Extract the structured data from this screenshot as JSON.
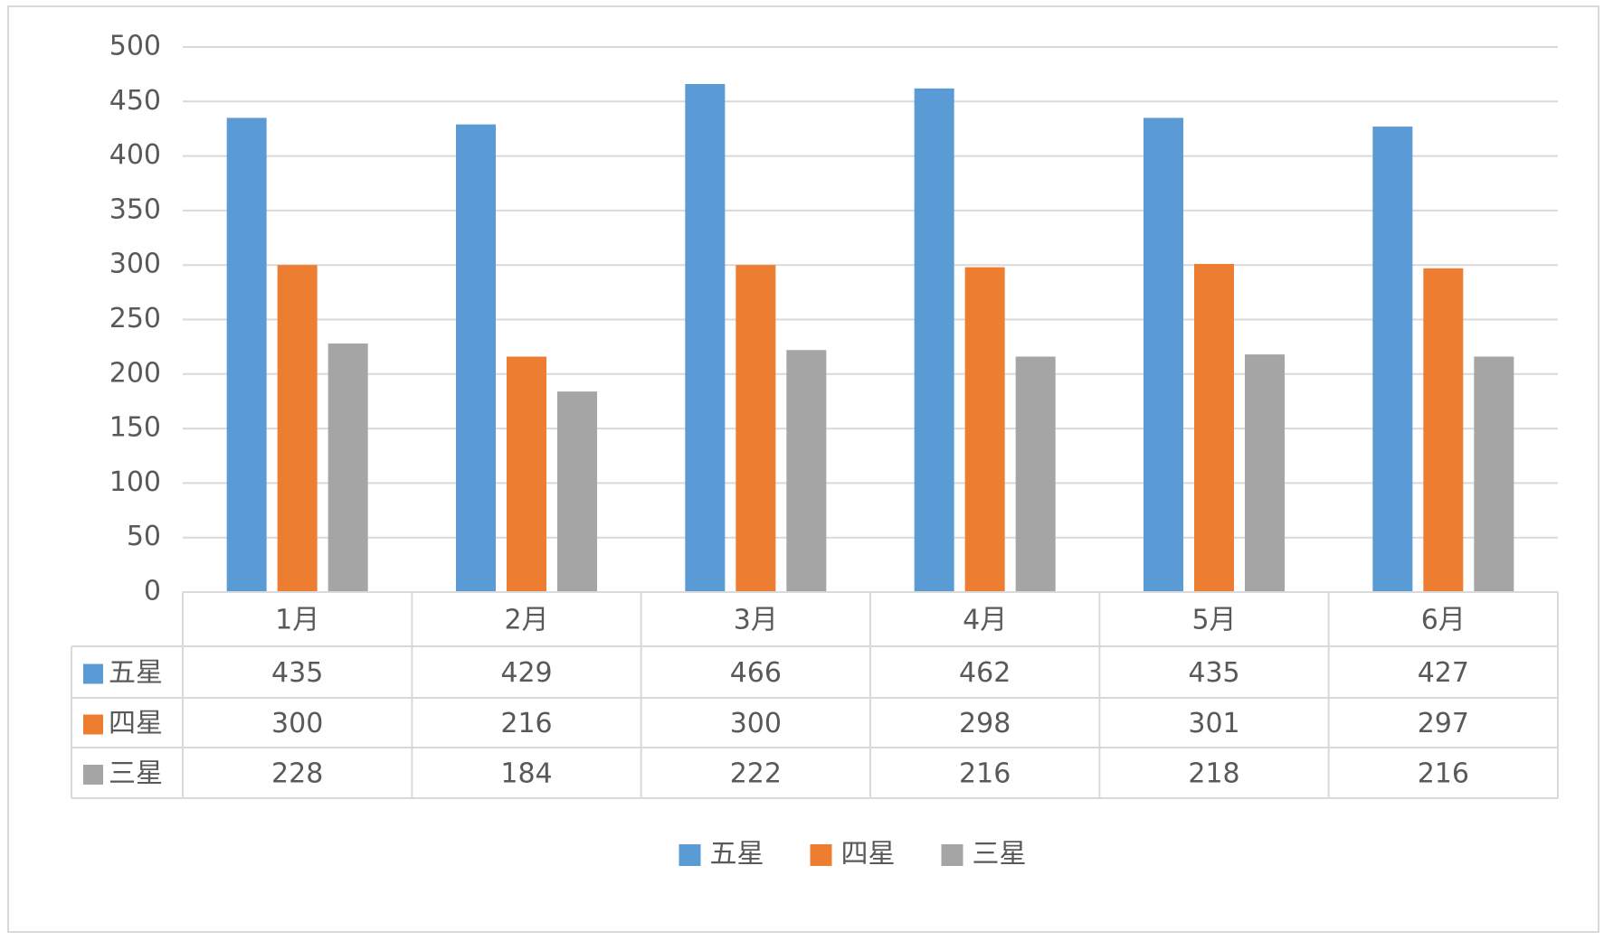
{
  "chart_data": {
    "type": "bar",
    "categories": [
      "1月",
      "2月",
      "3月",
      "4月",
      "5月",
      "6月"
    ],
    "series": [
      {
        "name": "五星",
        "color": "#5b9bd5",
        "values": [
          435,
          429,
          466,
          462,
          435,
          427
        ]
      },
      {
        "name": "四星",
        "color": "#ed7d31",
        "values": [
          300,
          216,
          300,
          298,
          301,
          297
        ]
      },
      {
        "name": "三星",
        "color": "#a5a5a5",
        "values": [
          228,
          184,
          222,
          216,
          218,
          216
        ]
      }
    ],
    "ylim": [
      0,
      500
    ],
    "yticks": [
      0,
      50,
      100,
      150,
      200,
      250,
      300,
      350,
      400,
      450,
      500
    ],
    "grid": true,
    "data_table": true,
    "legend": "bottom"
  }
}
